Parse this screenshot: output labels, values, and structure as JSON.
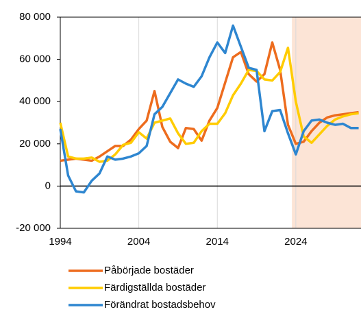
{
  "chart_data": {
    "type": "line",
    "x": [
      1994,
      1995,
      1996,
      1997,
      1998,
      1999,
      2000,
      2001,
      2002,
      2003,
      2004,
      2005,
      2006,
      2007,
      2008,
      2009,
      2010,
      2011,
      2012,
      2013,
      2014,
      2015,
      2016,
      2017,
      2018,
      2019,
      2020,
      2021,
      2022,
      2023,
      2024,
      2025,
      2026,
      2027,
      2028,
      2029,
      2030,
      2031,
      2032
    ],
    "series": [
      {
        "name": "Påbörjade bostäder",
        "color": "#ed6c1e",
        "values": [
          12000,
          12500,
          13000,
          12500,
          12000,
          14000,
          16500,
          19000,
          19000,
          22000,
          27000,
          31000,
          45000,
          28000,
          21000,
          18000,
          27500,
          27000,
          21500,
          31000,
          37000,
          49000,
          61000,
          63500,
          53000,
          49500,
          53000,
          68000,
          55000,
          29000,
          20000,
          21000,
          26000,
          30000,
          32500,
          33500,
          34000,
          34500,
          35000
        ]
      },
      {
        "name": "Färdigställda bostäder",
        "color": "#ffcc00",
        "values": [
          30000,
          14000,
          13000,
          13000,
          13500,
          11500,
          12000,
          15000,
          19500,
          20500,
          25500,
          22500,
          30000,
          31000,
          32000,
          25000,
          20000,
          20500,
          26000,
          29500,
          29500,
          34500,
          43000,
          48500,
          55000,
          54500,
          50500,
          50000,
          54000,
          65500,
          40000,
          23500,
          20500,
          24500,
          28500,
          31500,
          33000,
          34000,
          34500
        ]
      },
      {
        "name": "Förändrat bostadsbehov",
        "color": "#2e86d0",
        "values": [
          27000,
          5000,
          -2500,
          -3000,
          2500,
          6000,
          14000,
          12500,
          13000,
          14000,
          15500,
          19000,
          34000,
          37500,
          44000,
          50500,
          48500,
          47000,
          52000,
          61000,
          68000,
          63000,
          76000,
          66000,
          56000,
          55000,
          26000,
          35500,
          36000,
          25000,
          15000,
          26000,
          31000,
          31500,
          30000,
          29000,
          29500,
          27500,
          27500
        ]
      }
    ],
    "xlim": [
      1994,
      2032.3
    ],
    "xticks": [
      1994,
      2004,
      2014,
      2024
    ],
    "ylim": [
      -20000,
      80000
    ],
    "yticks": [
      {
        "value": -20000,
        "label": "-20 000"
      },
      {
        "value": 0,
        "label": "0"
      },
      {
        "value": 20000,
        "label": "20 000"
      },
      {
        "value": 40000,
        "label": "40 000"
      },
      {
        "value": 60000,
        "label": "60 000"
      },
      {
        "value": 80000,
        "label": "80 000"
      }
    ],
    "shaded_region": [
      2023.5,
      2032.3
    ],
    "shade_color": "#fce4d6",
    "grid": true,
    "legend": "bottom"
  }
}
